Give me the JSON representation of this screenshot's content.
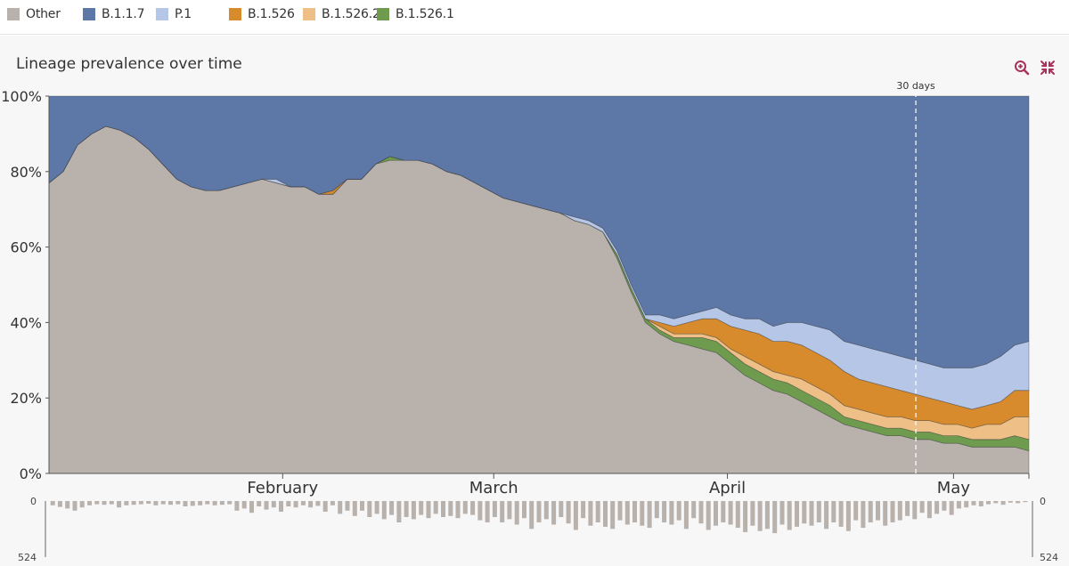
{
  "legend": [
    {
      "name": "Other",
      "color": "#b8b1ac"
    },
    {
      "name": "B.1.1.7",
      "color": "#5d77a6"
    },
    {
      "name": "P.1",
      "color": "#b5c6e6"
    },
    {
      "name": "B.1.526",
      "color": "#d88b2c"
    },
    {
      "name": "B.1.526.2",
      "color": "#eec088"
    },
    {
      "name": "B.1.526.1",
      "color": "#6e9b4e"
    }
  ],
  "chart": {
    "title": "Lineage prevalence over time",
    "marker_label": "30 days",
    "hist_top_label": "0",
    "hist_bottom_label": "524",
    "hist_right_top": "0",
    "hist_right_bottom": "524"
  },
  "chart_data": {
    "type": "area",
    "stacked": true,
    "title": "Lineage prevalence over time",
    "y_ticks": [
      "0%",
      "20%",
      "40%",
      "60%",
      "80%",
      "100%"
    ],
    "ylim": [
      0,
      100
    ],
    "x_ticks": [
      {
        "label": "February",
        "day": 31
      },
      {
        "label": "March",
        "day": 59
      },
      {
        "label": "April",
        "day": 90
      },
      {
        "label": "May",
        "day": 120
      }
    ],
    "x_range_days": [
      0,
      130
    ],
    "series": [
      {
        "name": "Other",
        "color": "#b8b1ac",
        "values": [
          77,
          80,
          87,
          90,
          92,
          91,
          89,
          86,
          82,
          78,
          76,
          75,
          75,
          76,
          77,
          78,
          77,
          76,
          76,
          74,
          74,
          78,
          78,
          82,
          83,
          83,
          83,
          82,
          80,
          79,
          77,
          75,
          73,
          72,
          71,
          70,
          69,
          67,
          66,
          64,
          57,
          48,
          40,
          37,
          35,
          34,
          33,
          32,
          29,
          26,
          24,
          22,
          21,
          19,
          17,
          15,
          13,
          12,
          11,
          10,
          10,
          9,
          9,
          8,
          8,
          7,
          7,
          7,
          7,
          6
        ]
      },
      {
        "name": "B.1.526.1",
        "color": "#6e9b4e",
        "values": [
          0,
          0,
          0,
          0,
          0,
          0,
          0,
          0,
          0,
          0,
          0,
          0,
          0,
          0,
          0,
          0,
          0,
          0,
          0,
          0,
          0,
          0,
          0,
          0,
          1,
          0,
          0,
          0,
          0,
          0,
          0,
          0,
          0,
          0,
          0,
          0,
          0,
          0,
          0,
          0,
          1,
          1,
          1,
          1,
          1,
          2,
          3,
          3,
          3,
          3,
          3,
          3,
          3,
          3,
          3,
          3,
          2,
          2,
          2,
          2,
          2,
          2,
          2,
          2,
          2,
          2,
          2,
          2,
          3,
          3
        ]
      },
      {
        "name": "B.1.526.2",
        "color": "#eec088",
        "values": [
          0,
          0,
          0,
          0,
          0,
          0,
          0,
          0,
          0,
          0,
          0,
          0,
          0,
          0,
          0,
          0,
          0,
          0,
          0,
          0,
          0,
          0,
          0,
          0,
          0,
          0,
          0,
          0,
          0,
          0,
          0,
          0,
          0,
          0,
          0,
          0,
          0,
          0,
          0,
          0,
          0,
          0,
          0,
          1,
          1,
          1,
          1,
          1,
          1,
          2,
          2,
          2,
          2,
          3,
          3,
          3,
          3,
          3,
          3,
          3,
          3,
          3,
          3,
          3,
          3,
          3,
          4,
          4,
          5,
          6
        ]
      },
      {
        "name": "B.1.526",
        "color": "#d88b2c",
        "values": [
          0,
          0,
          0,
          0,
          0,
          0,
          0,
          0,
          0,
          0,
          0,
          0,
          0,
          0,
          0,
          0,
          0,
          0,
          0,
          0,
          1,
          0,
          0,
          0,
          0,
          0,
          0,
          0,
          0,
          0,
          0,
          0,
          0,
          0,
          0,
          0,
          0,
          0,
          0,
          0,
          0,
          0,
          0,
          1,
          2,
          3,
          4,
          5,
          6,
          7,
          8,
          8,
          9,
          9,
          9,
          9,
          9,
          8,
          8,
          8,
          7,
          7,
          6,
          6,
          5,
          5,
          5,
          6,
          7,
          7
        ]
      },
      {
        "name": "P.1",
        "color": "#b5c6e6",
        "values": [
          0,
          0,
          0,
          0,
          0,
          0,
          0,
          0,
          0,
          0,
          0,
          0,
          0,
          0,
          0,
          0,
          1,
          0,
          0,
          0,
          0,
          0,
          0,
          0,
          0,
          0,
          0,
          0,
          0,
          0,
          0,
          0,
          0,
          0,
          0,
          0,
          0,
          1,
          1,
          1,
          1,
          1,
          1,
          2,
          2,
          2,
          2,
          3,
          3,
          3,
          4,
          4,
          5,
          6,
          7,
          8,
          8,
          9,
          9,
          9,
          9,
          9,
          9,
          9,
          10,
          11,
          11,
          12,
          12,
          13
        ]
      },
      {
        "name": "B.1.1.7",
        "color": "#5d77a6",
        "values": [
          23,
          20,
          13,
          10,
          8,
          9,
          11,
          14,
          18,
          22,
          24,
          25,
          25,
          24,
          23,
          22,
          22,
          24,
          24,
          26,
          25,
          22,
          22,
          18,
          16,
          17,
          17,
          18,
          20,
          21,
          23,
          25,
          27,
          28,
          29,
          30,
          31,
          32,
          33,
          35,
          41,
          50,
          58,
          58,
          59,
          58,
          57,
          56,
          58,
          59,
          59,
          61,
          60,
          60,
          61,
          62,
          65,
          66,
          67,
          68,
          69,
          70,
          71,
          72,
          72,
          72,
          71,
          69,
          66,
          65
        ]
      }
    ],
    "daily_counts_max": 524,
    "daily_counts": [
      40,
      55,
      70,
      90,
      60,
      40,
      30,
      35,
      30,
      60,
      40,
      35,
      30,
      25,
      40,
      30,
      35,
      30,
      50,
      45,
      40,
      30,
      40,
      35,
      30,
      90,
      70,
      110,
      50,
      80,
      60,
      100,
      50,
      60,
      40,
      60,
      45,
      100,
      40,
      120,
      90,
      140,
      90,
      150,
      120,
      170,
      130,
      200,
      150,
      170,
      130,
      160,
      120,
      150,
      140,
      160,
      120,
      130,
      180,
      200,
      150,
      200,
      170,
      220,
      160,
      260,
      200,
      170,
      220,
      150,
      210,
      270,
      160,
      230,
      200,
      240,
      260,
      180,
      220,
      200,
      230,
      250,
      160,
      200,
      220,
      180,
      260,
      160,
      210,
      270,
      230,
      200,
      220,
      250,
      290,
      230,
      280,
      260,
      300,
      220,
      270,
      240,
      210,
      230,
      200,
      260,
      200,
      240,
      280,
      180,
      250,
      200,
      180,
      230,
      200,
      180,
      140,
      170,
      110,
      160,
      120,
      90,
      130,
      70,
      60,
      40,
      50,
      30,
      20,
      35,
      15,
      20,
      10
    ]
  }
}
